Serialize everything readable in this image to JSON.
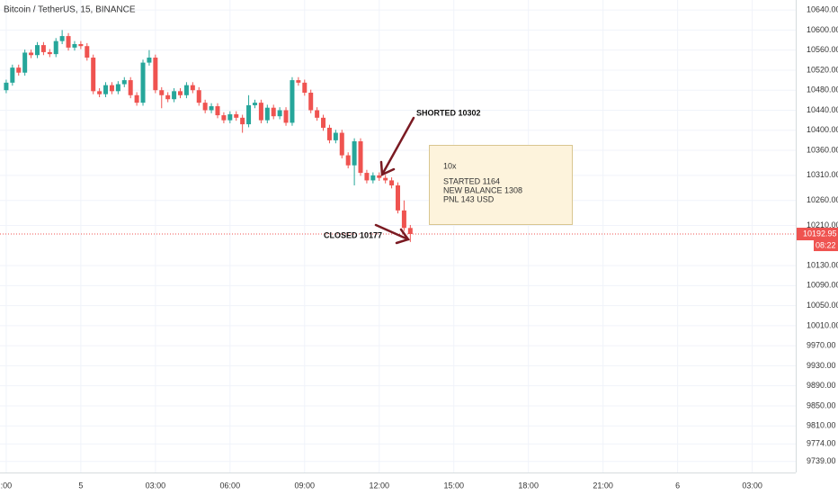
{
  "chart_data": {
    "type": "candlestick",
    "title": "Bitcoin / TetherUS, 15, BINANCE",
    "up_color": "#26a69a",
    "down_color": "#ef5350",
    "grid": true,
    "open": [
      10480,
      10495,
      10525,
      10515,
      10555,
      10550,
      10570,
      10556,
      10552,
      10578,
      10588,
      10565,
      10572,
      10568,
      10545,
      10478,
      10472,
      10490,
      10478,
      10492,
      10500,
      10470,
      10455,
      10535,
      10545,
      10480,
      10470,
      10462,
      10478,
      10470,
      10490,
      10480,
      10455,
      10440,
      10448,
      10430,
      10420,
      10432,
      10425,
      10412,
      10450,
      10455,
      10420,
      10445,
      10428,
      10440,
      10415,
      10500,
      10495,
      10475,
      10440,
      10425,
      10405,
      10380,
      10395,
      10350,
      10330,
      10378,
      10315,
      10300,
      10310,
      10305,
      10300,
      10290,
      10240,
      10205
    ],
    "high": [
      10501,
      10531,
      10531,
      10561,
      10561,
      10576,
      10576,
      10562,
      10584,
      10600,
      10594,
      10578,
      10578,
      10574,
      10551,
      10484,
      10496,
      10496,
      10498,
      10506,
      10506,
      10476,
      10541,
      10560,
      10551,
      10486,
      10476,
      10484,
      10484,
      10496,
      10496,
      10486,
      10461,
      10454,
      10454,
      10436,
      10438,
      10438,
      10431,
      10470,
      10461,
      10461,
      10451,
      10451,
      10446,
      10446,
      10506,
      10506,
      10501,
      10481,
      10446,
      10431,
      10411,
      10401,
      10401,
      10356,
      10384,
      10384,
      10321,
      10316,
      10316,
      10311,
      10306,
      10296,
      10260,
      10211
    ],
    "low": [
      10474,
      10489,
      10509,
      10509,
      10544,
      10544,
      10550,
      10546,
      10546,
      10572,
      10559,
      10559,
      10562,
      10539,
      10472,
      10466,
      10466,
      10472,
      10472,
      10486,
      10464,
      10449,
      10449,
      10529,
      10474,
      10444,
      10456,
      10456,
      10464,
      10464,
      10474,
      10449,
      10434,
      10434,
      10424,
      10414,
      10414,
      10419,
      10395,
      10406,
      10444,
      10414,
      10414,
      10422,
      10422,
      10409,
      10409,
      10489,
      10469,
      10434,
      10419,
      10399,
      10374,
      10374,
      10344,
      10324,
      10290,
      10309,
      10294,
      10294,
      10299,
      10294,
      10284,
      10234,
      10199,
      10177
    ],
    "close": [
      10495,
      10525,
      10515,
      10555,
      10550,
      10570,
      10556,
      10552,
      10578,
      10588,
      10565,
      10572,
      10568,
      10545,
      10478,
      10472,
      10490,
      10478,
      10492,
      10500,
      10470,
      10455,
      10535,
      10545,
      10480,
      10470,
      10462,
      10478,
      10470,
      10490,
      10480,
      10455,
      10440,
      10448,
      10430,
      10420,
      10432,
      10425,
      10412,
      10450,
      10455,
      10420,
      10445,
      10428,
      10440,
      10415,
      10500,
      10495,
      10475,
      10440,
      10425,
      10405,
      10380,
      10395,
      10350,
      10330,
      10378,
      10315,
      10300,
      10310,
      10305,
      10300,
      10290,
      10240,
      10205,
      10192.95
    ],
    "countdown": "08:22",
    "ylim": [
      9717,
      10660
    ],
    "yticks": [
      {
        "value": 10640,
        "label": "10640.00"
      },
      {
        "value": 10600,
        "label": "10600.00"
      },
      {
        "value": 10560,
        "label": "10560.00"
      },
      {
        "value": 10520,
        "label": "10520.00"
      },
      {
        "value": 10480,
        "label": "10480.00"
      },
      {
        "value": 10440,
        "label": "10440.00"
      },
      {
        "value": 10400,
        "label": "10400.00"
      },
      {
        "value": 10360,
        "label": "10360.00"
      },
      {
        "value": 10310,
        "label": "10310.00"
      },
      {
        "value": 10260,
        "label": "10260.00"
      },
      {
        "value": 10210,
        "label": "10210.00"
      },
      {
        "value": 10130,
        "label": "10130.00"
      },
      {
        "value": 10090,
        "label": "10090.00"
      },
      {
        "value": 10050,
        "label": "10050.00"
      },
      {
        "value": 10010,
        "label": "10010.00"
      },
      {
        "value": 9970,
        "label": "9970.00"
      },
      {
        "value": 9930,
        "label": "9930.00"
      },
      {
        "value": 9890,
        "label": "9890.00"
      },
      {
        "value": 9850,
        "label": "9850.00"
      },
      {
        "value": 9810,
        "label": "9810.00"
      },
      {
        "value": 9774,
        "label": "9774.00"
      },
      {
        "value": 9739,
        "label": "9739.00"
      }
    ],
    "xlim": [
      -1,
      127
    ],
    "xticks": [
      {
        "value": 0,
        "label": ":00"
      },
      {
        "value": 12,
        "label": "5"
      },
      {
        "value": 24,
        "label": "03:00"
      },
      {
        "value": 36,
        "label": "06:00"
      },
      {
        "value": 48,
        "label": "09:00"
      },
      {
        "value": 60,
        "label": "12:00"
      },
      {
        "value": 72,
        "label": "15:00"
      },
      {
        "value": 84,
        "label": "18:00"
      },
      {
        "value": 96,
        "label": "21:00"
      },
      {
        "value": 108,
        "label": "6"
      },
      {
        "value": 120,
        "label": "03:00"
      }
    ],
    "annotations": {
      "shorted": "SHORTED 10302",
      "closed": "CLOSED 10177",
      "note": [
        "10x",
        "STARTED 1164",
        "NEW BALANCE 1308",
        "PNL 143 USD"
      ]
    }
  }
}
